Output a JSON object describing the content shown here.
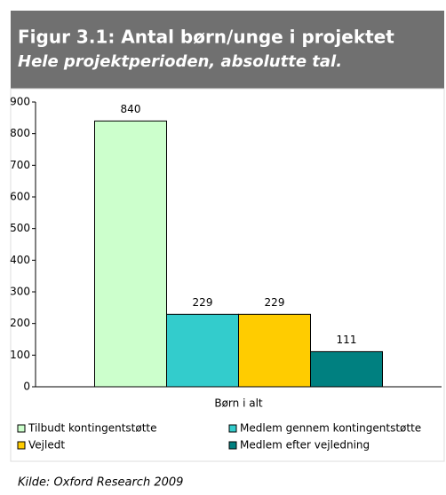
{
  "chart_data": {
    "type": "bar",
    "title": "Figur 3.1: Antal børn/unge i projektet",
    "subtitle": "Hele projektperioden, absolutte tal.",
    "categories": [
      "Børn i alt"
    ],
    "series": [
      {
        "name": "Tilbudt kontingentstøtte",
        "color": "#ccffcc",
        "values": [
          840
        ]
      },
      {
        "name": "Medlem gennem kontingentstøtte",
        "color": "#33cccc",
        "values": [
          229
        ]
      },
      {
        "name": "Vejledt",
        "color": "#ffcc00",
        "values": [
          229
        ]
      },
      {
        "name": "Medlem efter vejledning",
        "color": "#008080",
        "values": [
          111
        ]
      }
    ],
    "ylim": [
      0,
      900
    ],
    "yticks": [
      0,
      100,
      200,
      300,
      400,
      500,
      600,
      700,
      800,
      900
    ],
    "grid": false,
    "legend": "bottom",
    "source": "Kilde: Oxford Research 2009"
  }
}
